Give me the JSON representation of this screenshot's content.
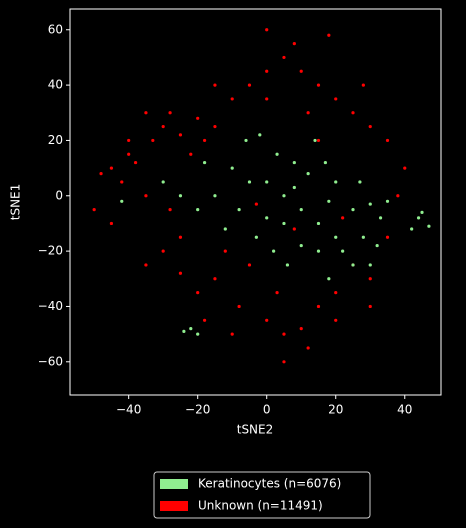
{
  "chart_data": {
    "type": "scatter",
    "x_label": "tSNE2",
    "y_label": "tSNE1",
    "xlim": [
      -57,
      50.5
    ],
    "ylim": [
      -72,
      67.5
    ],
    "xticks": [
      {
        "value": -40,
        "label": "−40"
      },
      {
        "value": -20,
        "label": "−20"
      },
      0,
      20,
      40
    ],
    "yticks": [
      {
        "value": -60,
        "label": "−60"
      },
      {
        "value": -40,
        "label": "−40"
      },
      {
        "value": -20,
        "label": "−20"
      },
      0,
      20,
      40,
      60
    ],
    "legend": "below",
    "series": [
      {
        "name": "Unknown (n=11491)",
        "color": "#ff0000",
        "x": [
          -45,
          -42,
          -38,
          -48,
          -40,
          -35,
          -33,
          -30,
          -25,
          -20,
          -18,
          -15,
          -22,
          -28,
          -35,
          -10,
          -5,
          0,
          5,
          10,
          15,
          20,
          25,
          30,
          35,
          8,
          18,
          0,
          12,
          28,
          -12,
          -15,
          -20,
          -25,
          -8,
          0,
          5,
          10,
          15,
          20,
          25,
          30,
          -5,
          3,
          -18,
          -10,
          12,
          20,
          35,
          38,
          40,
          -50,
          -45,
          -30,
          -25,
          -28,
          8,
          -3,
          15,
          22,
          -35,
          30,
          -15,
          5,
          -40,
          0
        ],
        "values": [
          10,
          5,
          12,
          8,
          15,
          0,
          20,
          25,
          22,
          28,
          20,
          25,
          15,
          30,
          30,
          35,
          40,
          45,
          50,
          45,
          40,
          35,
          30,
          25,
          20,
          55,
          58,
          35,
          30,
          40,
          -20,
          -30,
          -35,
          -28,
          -40,
          -45,
          -50,
          -48,
          -40,
          -35,
          -25,
          -30,
          -25,
          -35,
          -45,
          -50,
          -55,
          -45,
          -15,
          0,
          10,
          -5,
          -10,
          -20,
          -15,
          -5,
          -12,
          -3,
          20,
          -8,
          -25,
          -40,
          40,
          -60,
          20,
          60
        ]
      },
      {
        "name": "Keratinocytes (n=6076)",
        "color": "#90ee90",
        "x": [
          0,
          5,
          10,
          15,
          20,
          8,
          12,
          18,
          25,
          30,
          33,
          28,
          22,
          15,
          5,
          -5,
          -10,
          -15,
          -8,
          0,
          3,
          8,
          17,
          20,
          27,
          35,
          32,
          25,
          10,
          2,
          -3,
          -12,
          -20,
          -25,
          -30,
          -18,
          -6,
          -2,
          14,
          44,
          47,
          42,
          45,
          -22,
          -20,
          -24,
          6,
          18,
          -42,
          30
        ],
        "values": [
          5,
          0,
          -5,
          -10,
          -15,
          3,
          8,
          -2,
          -5,
          -3,
          -8,
          -15,
          -20,
          -20,
          -10,
          5,
          10,
          0,
          -5,
          -8,
          15,
          12,
          12,
          5,
          5,
          -2,
          -18,
          -25,
          -18,
          -20,
          -15,
          -12,
          -5,
          0,
          5,
          12,
          20,
          22,
          20,
          -8,
          -11,
          -12,
          -6,
          -48,
          -50,
          -49,
          -25,
          -30,
          -2,
          -25
        ]
      }
    ]
  }
}
